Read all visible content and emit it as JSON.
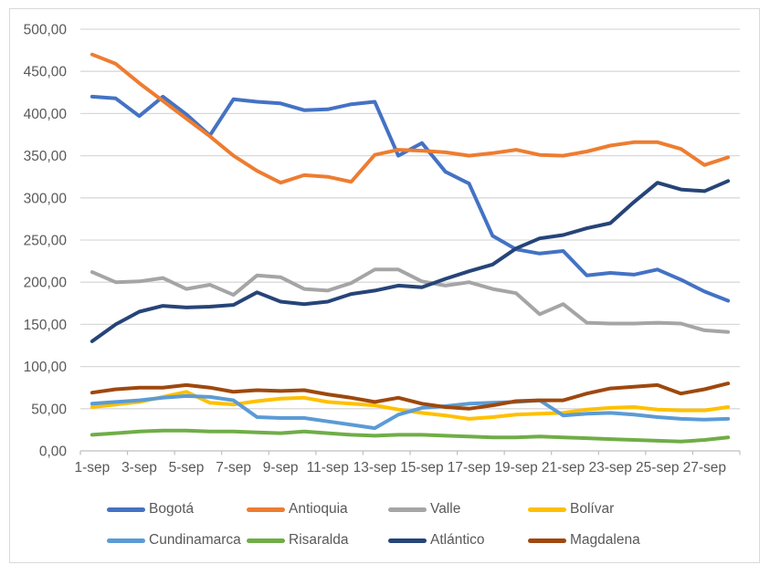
{
  "chart_data": {
    "type": "line",
    "title": "",
    "xlabel": "",
    "ylabel": "",
    "ylim": [
      0,
      500
    ],
    "y_tick_step": 50,
    "y_tick_labels": [
      "0,00",
      "50,00",
      "100,00",
      "150,00",
      "200,00",
      "250,00",
      "300,00",
      "350,00",
      "400,00",
      "450,00",
      "500,00"
    ],
    "categories": [
      "1-sep",
      "2-sep",
      "3-sep",
      "4-sep",
      "5-sep",
      "6-sep",
      "7-sep",
      "8-sep",
      "9-sep",
      "10-sep",
      "11-sep",
      "12-sep",
      "13-sep",
      "14-sep",
      "15-sep",
      "16-sep",
      "17-sep",
      "18-sep",
      "19-sep",
      "20-sep",
      "21-sep",
      "22-sep",
      "23-sep",
      "24-sep",
      "25-sep",
      "26-sep",
      "27-sep",
      "28-sep"
    ],
    "x_tick_labels": [
      "1-sep",
      "3-sep",
      "5-sep",
      "7-sep",
      "9-sep",
      "11-sep",
      "13-sep",
      "15-sep",
      "17-sep",
      "19-sep",
      "21-sep",
      "23-sep",
      "25-sep",
      "27-sep"
    ],
    "grid": "horizontal",
    "legend_position": "bottom",
    "style": {
      "background": "#FFFFFF",
      "frame_color": "#D9D9D9",
      "gridline_color": "#D9D9D9",
      "axis_line_color": "#BFBFBF",
      "label_color": "#595959",
      "line_width": 4
    },
    "series": [
      {
        "name": "Bogotá",
        "slug": "bogota",
        "color": "#4472C4",
        "values": [
          420,
          418,
          397,
          420,
          399,
          374,
          417,
          414,
          412,
          404,
          405,
          411,
          414,
          350,
          365,
          331,
          317,
          255,
          239,
          234,
          237,
          208,
          211,
          209,
          215,
          203,
          189,
          178
        ]
      },
      {
        "name": "Antioquia",
        "slug": "antioquia",
        "color": "#ED7D31",
        "values": [
          470,
          459,
          436,
          415,
          394,
          373,
          350,
          332,
          318,
          327,
          325,
          319,
          351,
          357,
          356,
          354,
          350,
          353,
          357,
          351,
          350,
          355,
          362,
          366,
          366,
          358,
          339,
          348
        ]
      },
      {
        "name": "Valle",
        "slug": "valle",
        "color": "#A5A5A5",
        "values": [
          212,
          200,
          201,
          205,
          192,
          197,
          185,
          208,
          206,
          192,
          190,
          199,
          215,
          215,
          201,
          196,
          200,
          192,
          187,
          162,
          174,
          152,
          151,
          151,
          152,
          151,
          143,
          141
        ]
      },
      {
        "name": "Bolívar",
        "slug": "bolivar",
        "color": "#FFC000",
        "values": [
          52,
          55,
          58,
          64,
          70,
          57,
          55,
          59,
          62,
          63,
          58,
          56,
          54,
          49,
          45,
          42,
          38,
          40,
          43,
          44,
          45,
          49,
          51,
          52,
          49,
          48,
          48,
          52
        ]
      },
      {
        "name": "Cundinamarca",
        "slug": "cundinamarca",
        "color": "#5B9BD5",
        "values": [
          56,
          58,
          60,
          63,
          65,
          64,
          60,
          40,
          39,
          39,
          35,
          31,
          27,
          43,
          51,
          53,
          56,
          57,
          58,
          60,
          42,
          44,
          45,
          43,
          40,
          38,
          37,
          38
        ]
      },
      {
        "name": "Risaralda",
        "slug": "risaralda",
        "color": "#70AD47",
        "values": [
          19,
          21,
          23,
          24,
          24,
          23,
          23,
          22,
          21,
          23,
          21,
          19,
          18,
          19,
          19,
          18,
          17,
          16,
          16,
          17,
          16,
          15,
          14,
          13,
          12,
          11,
          13,
          16
        ]
      },
      {
        "name": "Atlántico",
        "slug": "atlantico",
        "color": "#264478",
        "values": [
          130,
          150,
          165,
          172,
          170,
          171,
          173,
          188,
          177,
          174,
          177,
          186,
          190,
          196,
          194,
          204,
          213,
          221,
          240,
          252,
          256,
          264,
          270,
          295,
          318,
          310,
          308,
          320
        ]
      },
      {
        "name": "Magdalena",
        "slug": "magdalena",
        "color": "#9E480E",
        "values": [
          69,
          73,
          75,
          75,
          78,
          75,
          70,
          72,
          71,
          72,
          67,
          63,
          58,
          63,
          56,
          52,
          50,
          54,
          59,
          60,
          60,
          68,
          74,
          76,
          78,
          68,
          73,
          80
        ]
      }
    ]
  }
}
